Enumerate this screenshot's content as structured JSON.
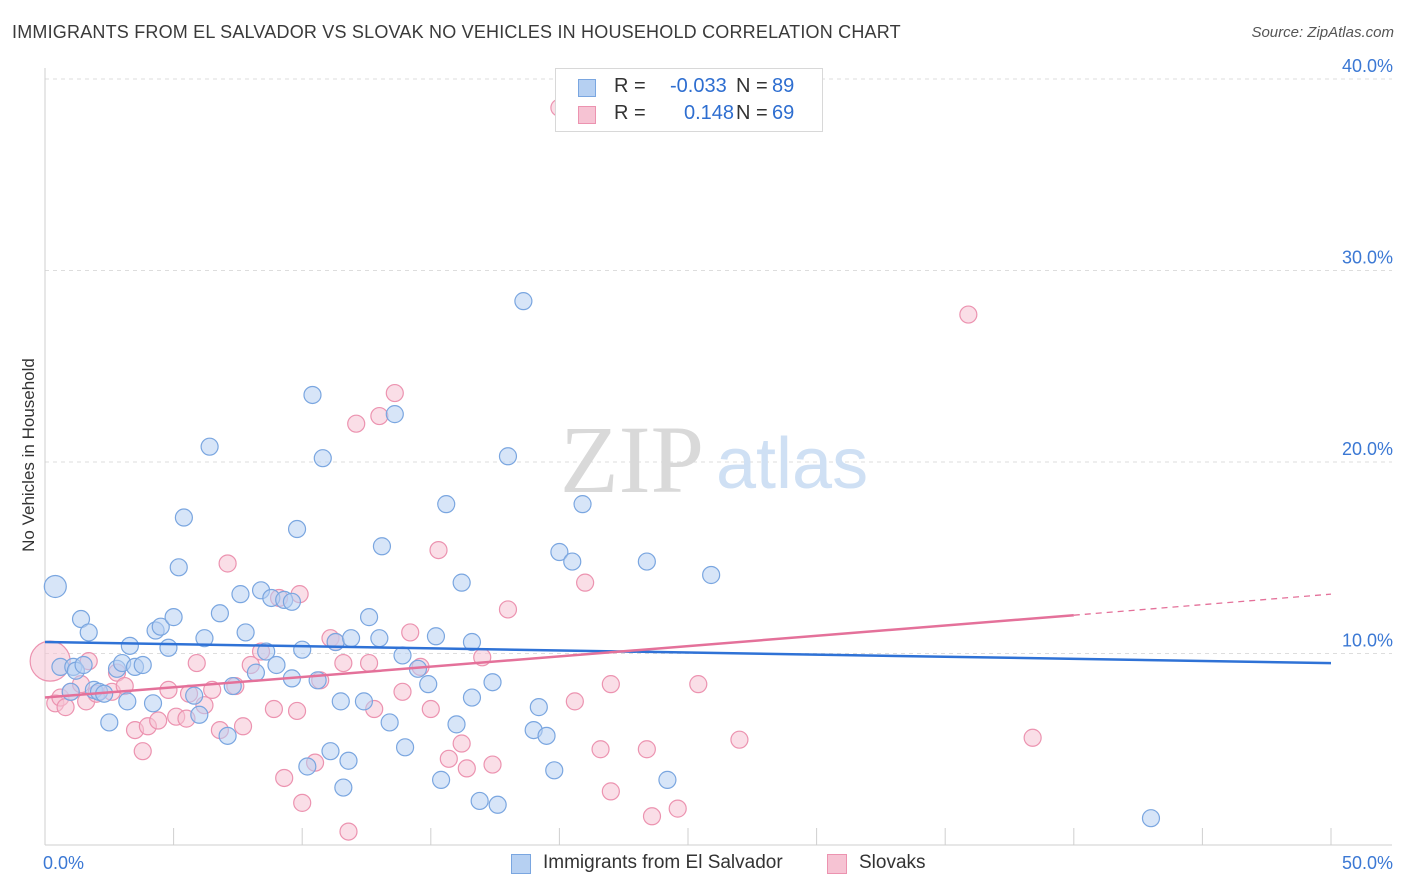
{
  "title": "IMMIGRANTS FROM EL SALVADOR VS SLOVAK NO VEHICLES IN HOUSEHOLD CORRELATION CHART",
  "source": "Source: ZipAtlas.com",
  "watermark": {
    "zip": "ZIP",
    "atlas": "atlas"
  },
  "stats": {
    "rows": [
      {
        "r_label": "R =",
        "r_value": "-0.033",
        "n_label": "N =",
        "n_value": "89"
      },
      {
        "r_label": "R =",
        "r_value": "0.148",
        "n_label": "N =",
        "n_value": "69"
      }
    ]
  },
  "legend": {
    "items": [
      "Immigrants from El Salvador",
      "Slovaks"
    ]
  },
  "colors": {
    "blue_fill": "#b6d0f2",
    "blue_stroke": "#7aa6e0",
    "blue_line": "#2f72d6",
    "pink_fill": "#f6c3d3",
    "pink_stroke": "#ec93b0",
    "pink_line": "#e4719a",
    "axis_text": "#3b78d4",
    "grid": "#dddddd"
  },
  "chart_data": {
    "type": "scatter",
    "title": "IMMIGRANTS FROM EL SALVADOR VS SLOVAK NO VEHICLES IN HOUSEHOLD CORRELATION CHART",
    "xlabel": "",
    "ylabel": "No Vehicles in Household",
    "xlim": [
      0,
      50
    ],
    "ylim": [
      0,
      40
    ],
    "x_tick_labels": [
      "0.0%",
      "50.0%"
    ],
    "y_ticks": [
      10,
      20,
      30,
      40
    ],
    "y_tick_labels": [
      "10.0%",
      "20.0%",
      "30.0%",
      "40.0%"
    ],
    "grid": true,
    "legend_position": "bottom-center",
    "series": [
      {
        "name": "Immigrants from El Salvador",
        "color": "#b6d0f2",
        "trend": {
          "x": [
            0,
            50
          ],
          "y": [
            10.6,
            9.5
          ]
        },
        "points": [
          {
            "x": 0.4,
            "y": 13.5,
            "big": true
          },
          {
            "x": 0.6,
            "y": 9.3
          },
          {
            "x": 1.0,
            "y": 8.0
          },
          {
            "x": 1.1,
            "y": 9.3
          },
          {
            "x": 1.2,
            "y": 9.1
          },
          {
            "x": 1.4,
            "y": 11.8
          },
          {
            "x": 1.5,
            "y": 9.4
          },
          {
            "x": 1.7,
            "y": 11.1
          },
          {
            "x": 1.9,
            "y": 8.1
          },
          {
            "x": 2.1,
            "y": 8.0
          },
          {
            "x": 2.3,
            "y": 7.9
          },
          {
            "x": 2.5,
            "y": 6.4
          },
          {
            "x": 2.8,
            "y": 9.2
          },
          {
            "x": 3.0,
            "y": 9.5
          },
          {
            "x": 3.2,
            "y": 7.5
          },
          {
            "x": 3.3,
            "y": 10.4
          },
          {
            "x": 3.5,
            "y": 9.3
          },
          {
            "x": 3.8,
            "y": 9.4
          },
          {
            "x": 4.2,
            "y": 7.4
          },
          {
            "x": 4.3,
            "y": 11.2
          },
          {
            "x": 4.5,
            "y": 11.4
          },
          {
            "x": 4.8,
            "y": 10.3
          },
          {
            "x": 5.0,
            "y": 11.9
          },
          {
            "x": 5.2,
            "y": 14.5
          },
          {
            "x": 5.4,
            "y": 17.1
          },
          {
            "x": 5.8,
            "y": 7.8
          },
          {
            "x": 6.0,
            "y": 6.8
          },
          {
            "x": 6.2,
            "y": 10.8
          },
          {
            "x": 6.4,
            "y": 20.8
          },
          {
            "x": 6.8,
            "y": 12.1
          },
          {
            "x": 7.1,
            "y": 5.7
          },
          {
            "x": 7.3,
            "y": 8.3
          },
          {
            "x": 7.6,
            "y": 13.1
          },
          {
            "x": 7.8,
            "y": 11.1
          },
          {
            "x": 8.2,
            "y": 9.0
          },
          {
            "x": 8.4,
            "y": 13.3
          },
          {
            "x": 8.6,
            "y": 10.1
          },
          {
            "x": 8.8,
            "y": 12.9
          },
          {
            "x": 9.0,
            "y": 9.4
          },
          {
            "x": 9.3,
            "y": 12.8
          },
          {
            "x": 9.6,
            "y": 12.7
          },
          {
            "x": 9.6,
            "y": 8.7
          },
          {
            "x": 9.8,
            "y": 16.5
          },
          {
            "x": 10.0,
            "y": 10.2
          },
          {
            "x": 10.2,
            "y": 4.1
          },
          {
            "x": 10.4,
            "y": 23.5
          },
          {
            "x": 10.6,
            "y": 8.6
          },
          {
            "x": 10.8,
            "y": 20.2
          },
          {
            "x": 11.1,
            "y": 4.9
          },
          {
            "x": 11.3,
            "y": 10.6
          },
          {
            "x": 11.5,
            "y": 7.5
          },
          {
            "x": 11.6,
            "y": 3.0
          },
          {
            "x": 11.8,
            "y": 4.4
          },
          {
            "x": 11.9,
            "y": 10.8
          },
          {
            "x": 12.4,
            "y": 7.5
          },
          {
            "x": 12.6,
            "y": 11.9
          },
          {
            "x": 13.0,
            "y": 10.8
          },
          {
            "x": 13.1,
            "y": 15.6
          },
          {
            "x": 13.4,
            "y": 6.4
          },
          {
            "x": 13.6,
            "y": 22.5
          },
          {
            "x": 13.9,
            "y": 9.9
          },
          {
            "x": 14.0,
            "y": 5.1
          },
          {
            "x": 14.5,
            "y": 9.2
          },
          {
            "x": 14.9,
            "y": 8.4
          },
          {
            "x": 15.2,
            "y": 10.9
          },
          {
            "x": 15.4,
            "y": 3.4
          },
          {
            "x": 15.6,
            "y": 17.8
          },
          {
            "x": 16.0,
            "y": 6.3
          },
          {
            "x": 16.2,
            "y": 13.7
          },
          {
            "x": 16.6,
            "y": 10.6
          },
          {
            "x": 16.6,
            "y": 7.7
          },
          {
            "x": 16.9,
            "y": 2.3
          },
          {
            "x": 17.4,
            "y": 8.5
          },
          {
            "x": 17.6,
            "y": 2.1
          },
          {
            "x": 18.0,
            "y": 20.3
          },
          {
            "x": 18.6,
            "y": 28.4
          },
          {
            "x": 19.0,
            "y": 6.0
          },
          {
            "x": 19.2,
            "y": 7.2
          },
          {
            "x": 19.5,
            "y": 5.7
          },
          {
            "x": 19.8,
            "y": 3.9
          },
          {
            "x": 20.0,
            "y": 15.3
          },
          {
            "x": 20.5,
            "y": 14.8
          },
          {
            "x": 20.9,
            "y": 17.8
          },
          {
            "x": 23.4,
            "y": 14.8
          },
          {
            "x": 24.2,
            "y": 3.4
          },
          {
            "x": 25.9,
            "y": 14.1
          },
          {
            "x": 43.0,
            "y": 1.4
          }
        ]
      },
      {
        "name": "Slovaks",
        "color": "#f6c3d3",
        "trend": {
          "x": [
            0,
            40,
            50
          ],
          "y": [
            7.7,
            12.0,
            13.1
          ],
          "solid_until": 40
        },
        "points": [
          {
            "x": 0.2,
            "y": 9.6,
            "big": true
          },
          {
            "x": 0.4,
            "y": 7.4
          },
          {
            "x": 0.6,
            "y": 7.7
          },
          {
            "x": 0.8,
            "y": 7.2
          },
          {
            "x": 1.0,
            "y": 8.0
          },
          {
            "x": 1.4,
            "y": 8.4
          },
          {
            "x": 1.6,
            "y": 7.5
          },
          {
            "x": 1.7,
            "y": 9.6
          },
          {
            "x": 2.0,
            "y": 7.9
          },
          {
            "x": 2.6,
            "y": 8.0
          },
          {
            "x": 2.8,
            "y": 9.0
          },
          {
            "x": 3.1,
            "y": 8.3
          },
          {
            "x": 3.5,
            "y": 6.0
          },
          {
            "x": 3.8,
            "y": 4.9
          },
          {
            "x": 4.0,
            "y": 6.2
          },
          {
            "x": 4.4,
            "y": 6.5
          },
          {
            "x": 4.8,
            "y": 8.1
          },
          {
            "x": 5.1,
            "y": 6.7
          },
          {
            "x": 5.5,
            "y": 6.6
          },
          {
            "x": 5.6,
            "y": 7.9
          },
          {
            "x": 5.9,
            "y": 9.5
          },
          {
            "x": 6.2,
            "y": 7.3
          },
          {
            "x": 6.5,
            "y": 8.1
          },
          {
            "x": 6.8,
            "y": 6.0
          },
          {
            "x": 7.1,
            "y": 14.7
          },
          {
            "x": 7.4,
            "y": 8.3
          },
          {
            "x": 7.7,
            "y": 6.2
          },
          {
            "x": 8.0,
            "y": 9.4
          },
          {
            "x": 8.4,
            "y": 10.1
          },
          {
            "x": 8.9,
            "y": 7.1
          },
          {
            "x": 9.1,
            "y": 12.9
          },
          {
            "x": 9.3,
            "y": 3.5
          },
          {
            "x": 9.8,
            "y": 7.0
          },
          {
            "x": 9.9,
            "y": 13.1
          },
          {
            "x": 10.0,
            "y": 2.2
          },
          {
            "x": 10.5,
            "y": 4.3
          },
          {
            "x": 10.7,
            "y": 8.6
          },
          {
            "x": 11.1,
            "y": 10.8
          },
          {
            "x": 11.3,
            "y": 10.6
          },
          {
            "x": 11.6,
            "y": 9.5
          },
          {
            "x": 11.8,
            "y": 0.7
          },
          {
            "x": 12.1,
            "y": 22.0
          },
          {
            "x": 12.6,
            "y": 9.5
          },
          {
            "x": 12.8,
            "y": 7.1
          },
          {
            "x": 13.0,
            "y": 22.4
          },
          {
            "x": 13.6,
            "y": 23.6
          },
          {
            "x": 13.9,
            "y": 8.0
          },
          {
            "x": 14.2,
            "y": 11.1
          },
          {
            "x": 14.6,
            "y": 9.3
          },
          {
            "x": 15.0,
            "y": 7.1
          },
          {
            "x": 15.3,
            "y": 15.4
          },
          {
            "x": 15.7,
            "y": 4.5
          },
          {
            "x": 16.2,
            "y": 5.3
          },
          {
            "x": 16.4,
            "y": 4.0
          },
          {
            "x": 17.0,
            "y": 9.8
          },
          {
            "x": 17.4,
            "y": 4.2
          },
          {
            "x": 18.0,
            "y": 12.3
          },
          {
            "x": 20.0,
            "y": 38.5
          },
          {
            "x": 20.6,
            "y": 7.5
          },
          {
            "x": 21.0,
            "y": 13.7
          },
          {
            "x": 21.6,
            "y": 5.0
          },
          {
            "x": 22.0,
            "y": 8.4
          },
          {
            "x": 22.0,
            "y": 2.8
          },
          {
            "x": 23.4,
            "y": 5.0
          },
          {
            "x": 23.6,
            "y": 1.5
          },
          {
            "x": 24.6,
            "y": 1.9
          },
          {
            "x": 25.4,
            "y": 8.4
          },
          {
            "x": 27.0,
            "y": 5.5
          },
          {
            "x": 35.9,
            "y": 27.7
          },
          {
            "x": 38.4,
            "y": 5.6
          }
        ]
      }
    ]
  }
}
